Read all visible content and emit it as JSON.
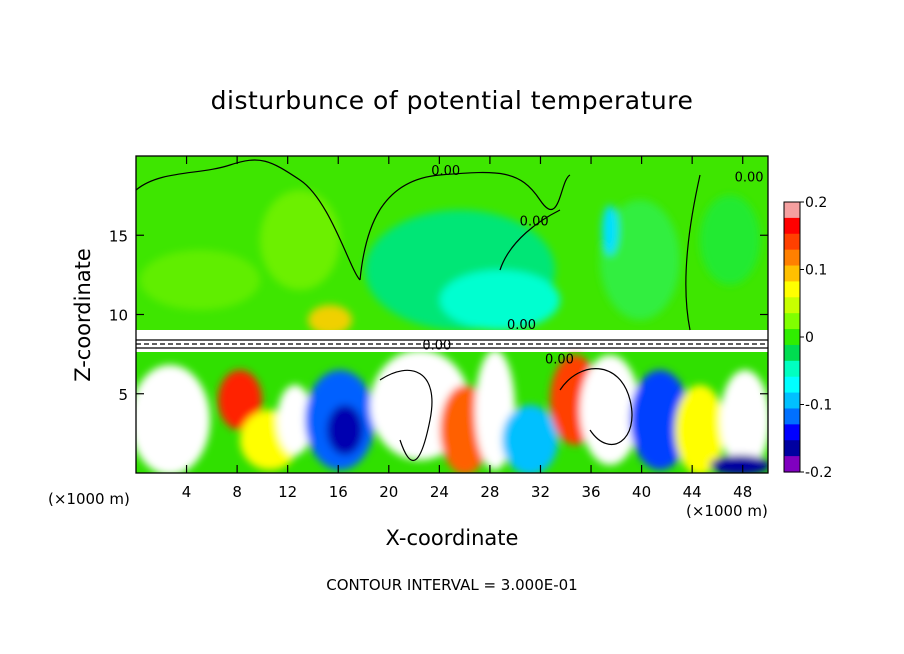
{
  "chart_data": {
    "type": "heatmap",
    "title": "disturbunce of potential temperature",
    "xlabel": "X-coordinate",
    "ylabel": "Z-coordinate",
    "x_unit_label": "(×1000 m)",
    "z_unit_label": "(×1000 m)",
    "footer": "CONTOUR INTERVAL = 3.000E-01",
    "xlim": [
      0,
      50
    ],
    "ylim": [
      0,
      20
    ],
    "x_ticks": [
      4,
      8,
      12,
      16,
      20,
      24,
      28,
      32,
      36,
      40,
      44,
      48
    ],
    "y_ticks": [
      5,
      10,
      15
    ],
    "colorbar": {
      "range": [
        -0.2,
        0.2
      ],
      "tick_values": [
        0.2,
        0.1,
        0,
        -0.1,
        -0.2
      ],
      "tick_labels": [
        "0.2",
        "0.1",
        "0",
        "-0.1",
        "-0.2"
      ],
      "colors": [
        "#f5a0a0",
        "#ff0000",
        "#ff4000",
        "#ff8000",
        "#ffc000",
        "#ffff00",
        "#c8ff00",
        "#80ff00",
        "#30ee00",
        "#00dd50",
        "#00ffc0",
        "#00ffff",
        "#00c0ff",
        "#0070ff",
        "#0000ff",
        "#0000a0",
        "#8000c0"
      ]
    },
    "contour_labels": [
      "0.00",
      "0.00",
      "0.00",
      "0.00",
      "0.00",
      "0.00"
    ],
    "contour_label_positions": [
      [
        24.5,
        18.8
      ],
      [
        51.0,
        18.4
      ],
      [
        31.5,
        15.6
      ],
      [
        30.5,
        9.1
      ],
      [
        23.8,
        7.8
      ],
      [
        33.5,
        6.9
      ]
    ]
  },
  "ui": {
    "unit_left": "(x1000 m)",
    "unit_right": "(x1000 m)"
  }
}
